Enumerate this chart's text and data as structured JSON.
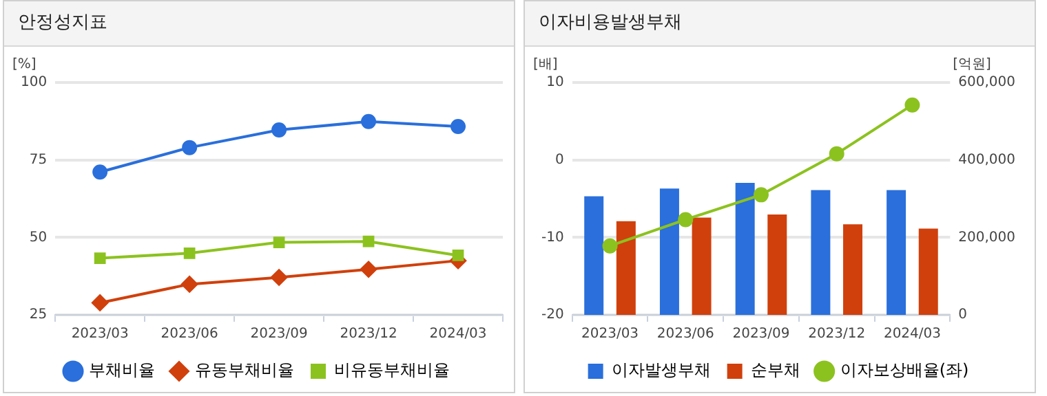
{
  "chart_data": [
    {
      "type": "line",
      "title": "안정성지표",
      "ylabel": "[%]",
      "categories": [
        "2023/03",
        "2023/06",
        "2023/09",
        "2023/12",
        "2024/03"
      ],
      "series": [
        {
          "name": "부채비율",
          "color": "#2a6fdb",
          "marker": "circle",
          "values": [
            71.1,
            79.0,
            84.7,
            87.4,
            85.8
          ]
        },
        {
          "name": "유동부채비율",
          "color": "#d0400c",
          "marker": "diamond",
          "values": [
            28.9,
            34.9,
            37.1,
            39.7,
            42.5
          ]
        },
        {
          "name": "비유동부채비율",
          "color": "#8cc21f",
          "marker": "square",
          "values": [
            43.3,
            44.9,
            48.4,
            48.7,
            44.2
          ]
        }
      ],
      "ylim": [
        25,
        100
      ],
      "yticks": [
        25,
        50,
        75,
        100
      ],
      "grid": "y",
      "legend": "bottom"
    },
    {
      "type": "bar",
      "title": "이자비용발생부채",
      "ylabel": "[배]",
      "y2label": "[억원]",
      "categories": [
        "2023/03",
        "2023/06",
        "2023/09",
        "2023/12",
        "2024/03"
      ],
      "series": [
        {
          "name": "이자발생부채",
          "color": "#2a6fdb",
          "axis": "y2",
          "values": [
            306000,
            326000,
            341000,
            322000,
            322000
          ]
        },
        {
          "name": "순부채",
          "color": "#d0400c",
          "axis": "y2",
          "values": [
            242000,
            251000,
            259000,
            234000,
            223000
          ]
        },
        {
          "name": "이자보상배율(좌)",
          "color": "#8cc21f",
          "type": "line",
          "marker": "circle",
          "axis": "y",
          "values": [
            -11.1,
            -7.7,
            -4.5,
            0.8,
            7.1
          ]
        }
      ],
      "ylim": [
        -20,
        10
      ],
      "yticks": [
        -20,
        -10,
        0,
        10
      ],
      "y2lim": [
        0,
        600000
      ],
      "y2ticks": [
        {
          "value": 0,
          "label": "0"
        },
        {
          "value": 200000,
          "label": "200,000"
        },
        {
          "value": 400000,
          "label": "400,000"
        },
        {
          "value": 600000,
          "label": "600,000"
        }
      ],
      "grid": "y",
      "legend": "bottom"
    }
  ]
}
